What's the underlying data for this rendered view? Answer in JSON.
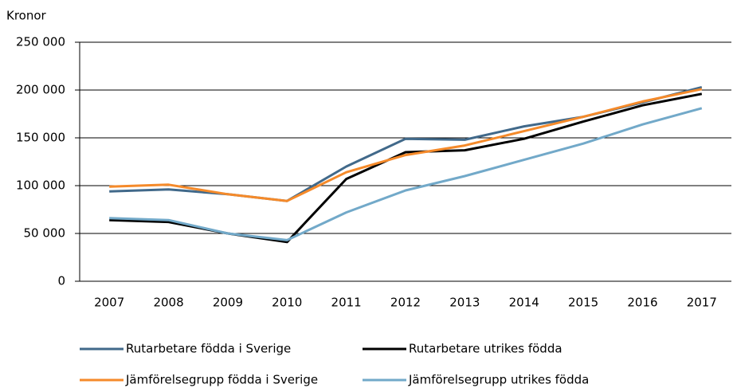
{
  "chart_data": {
    "type": "line",
    "y_label": "Kronor",
    "categories": [
      "2007",
      "2008",
      "2009",
      "2010",
      "2011",
      "2012",
      "2013",
      "2014",
      "2015",
      "2016",
      "2017"
    ],
    "series": [
      {
        "name": "Rutarbetare födda i Sverige",
        "color": "#41698a",
        "values": [
          94000,
          96000,
          91000,
          84000,
          120000,
          149000,
          148000,
          162000,
          172000,
          187000,
          203000
        ]
      },
      {
        "name": "Rutarbetare utrikes födda",
        "color": "#000000",
        "values": [
          64000,
          62000,
          50000,
          41000,
          107000,
          135000,
          137000,
          149000,
          167000,
          184000,
          196000
        ]
      },
      {
        "name": "Jämförelsegrupp födda i Sverige",
        "color": "#f58a2a",
        "values": [
          99000,
          101000,
          91000,
          84000,
          114000,
          132000,
          142000,
          157000,
          172000,
          188000,
          201000
        ]
      },
      {
        "name": "Jämförelsegrupp utrikes födda",
        "color": "#72a9c9",
        "values": [
          66000,
          64000,
          50000,
          43000,
          72000,
          95000,
          110000,
          127000,
          144000,
          164000,
          181000
        ]
      }
    ],
    "ylim": [
      0,
      250000
    ],
    "yticks": [
      0,
      {
        "value": 50000,
        "label": "50 000"
      },
      {
        "value": 100000,
        "label": "100 000"
      },
      {
        "value": 150000,
        "label": "150 000"
      },
      {
        "value": 200000,
        "label": "200 000"
      },
      {
        "value": 250000,
        "label": "250 000"
      }
    ],
    "grid": true
  }
}
